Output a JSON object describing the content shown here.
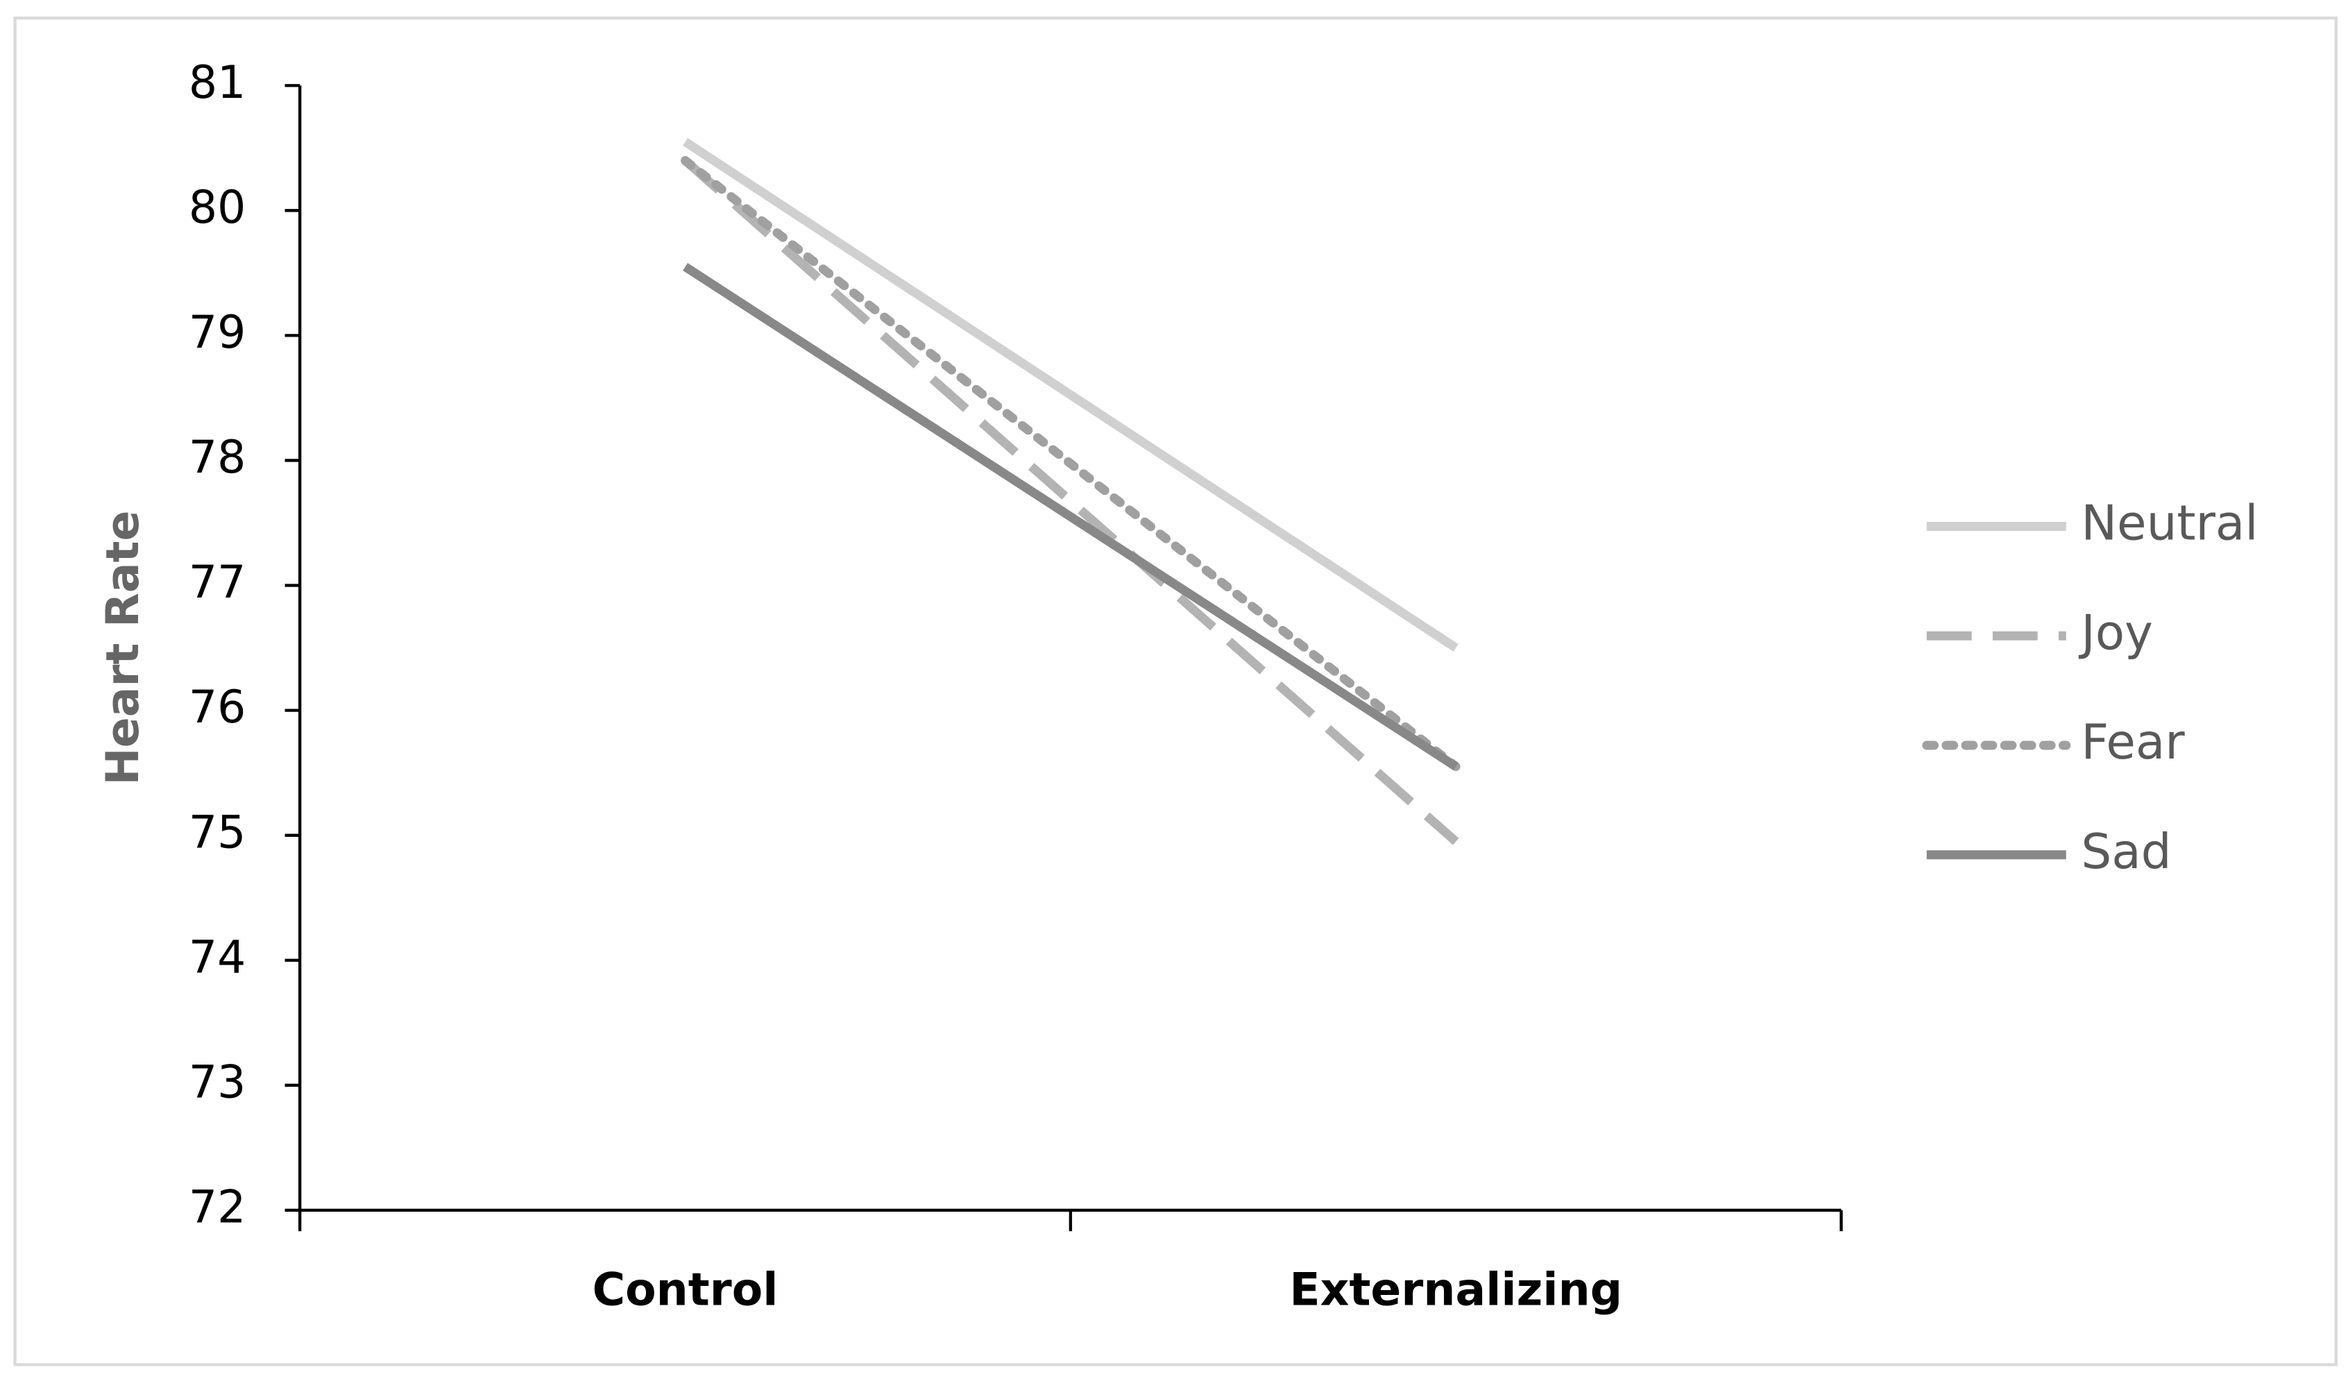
{
  "chart_data": {
    "type": "line",
    "ylabel": "Heart Rate",
    "categories": [
      "Control",
      "Externalizing"
    ],
    "series": [
      {
        "name": "Neutral",
        "color": "#d0d0d0",
        "dash": "solid",
        "values": [
          80.55,
          76.5
        ]
      },
      {
        "name": "Joy",
        "color": "#b3b3b3",
        "dash": "dashed",
        "values": [
          80.4,
          74.95
        ]
      },
      {
        "name": "Fear",
        "color": "#a0a0a0",
        "dash": "dotted",
        "values": [
          80.4,
          75.55
        ]
      },
      {
        "name": "Sad",
        "color": "#888888",
        "dash": "solid",
        "values": [
          79.55,
          75.55
        ]
      }
    ],
    "ylim": [
      72,
      81
    ],
    "yticks": [
      72,
      73,
      74,
      75,
      76,
      77,
      78,
      79,
      80,
      81
    ],
    "legend": "right"
  }
}
